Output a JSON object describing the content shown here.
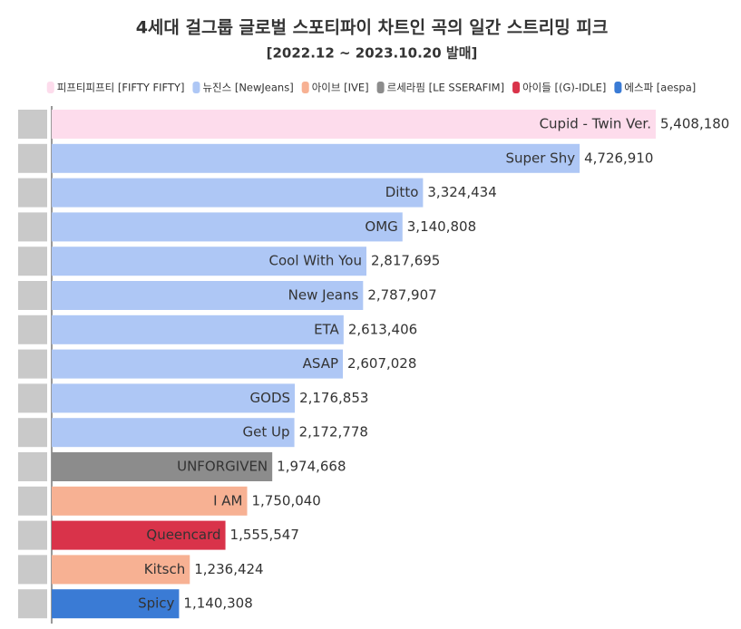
{
  "chart_data": {
    "type": "hbar",
    "title": "4세대 걸그룹 글로벌 스포티파이 차트인 곡의 일간 스트리밍 피크",
    "subtitle": "[2022.12 ~ 2023.10.20 발매]",
    "categories": [
      "Cupid - Twin Ver.",
      "Super Shy",
      "Ditto",
      "OMG",
      "Cool With You",
      "New Jeans",
      "ETA",
      "ASAP",
      "GODS",
      "Get Up",
      "UNFORGIVEN",
      "I AM",
      "Queencard",
      "Kitsch",
      "Spicy"
    ],
    "series": [
      {
        "name": "피프티피프티 [FIFTY FIFTY]",
        "color": "#fddcec",
        "values": [
          5408180,
          null,
          null,
          null,
          null,
          null,
          null,
          null,
          null,
          null,
          null,
          null,
          null,
          null,
          null
        ],
        "value_labels": [
          "5,408,180",
          null,
          null,
          null,
          null,
          null,
          null,
          null,
          null,
          null,
          null,
          null,
          null,
          null,
          null
        ]
      },
      {
        "name": "뉴진스 [NewJeans]",
        "color": "#aec7f5",
        "values": [
          null,
          4726910,
          3324434,
          3140808,
          2817695,
          2787907,
          2613406,
          2607028,
          2176853,
          2172778,
          null,
          null,
          null,
          null,
          null
        ],
        "value_labels": [
          null,
          "4,726,910",
          "3,324,434",
          "3,140,808",
          "2,817,695",
          "2,787,907",
          "2,613,406",
          "2,607,028",
          "2,176,853",
          "2,172,778",
          null,
          null,
          null,
          null,
          null
        ]
      },
      {
        "name": "아이브 [IVE]",
        "color": "#f7b193",
        "values": [
          null,
          null,
          null,
          null,
          null,
          null,
          null,
          null,
          null,
          null,
          null,
          1750040,
          null,
          1236424,
          null
        ],
        "value_labels": [
          null,
          null,
          null,
          null,
          null,
          null,
          null,
          null,
          null,
          null,
          null,
          "1,750,040",
          null,
          "1,236,424",
          null
        ]
      },
      {
        "name": "르세라핌 [LE SSERAFIM]",
        "color": "#8c8c8c",
        "values": [
          null,
          null,
          null,
          null,
          null,
          null,
          null,
          null,
          null,
          null,
          1974668,
          null,
          null,
          null,
          null
        ],
        "value_labels": [
          null,
          null,
          null,
          null,
          null,
          null,
          null,
          null,
          null,
          null,
          "1,974,668",
          null,
          null,
          null,
          null
        ]
      },
      {
        "name": "아이들 [(G)-IDLE]",
        "color": "#d9334a",
        "values": [
          null,
          null,
          null,
          null,
          null,
          null,
          null,
          null,
          null,
          null,
          null,
          null,
          1555547,
          null,
          null
        ],
        "value_labels": [
          null,
          null,
          null,
          null,
          null,
          null,
          null,
          null,
          null,
          null,
          null,
          null,
          "1,555,547",
          null,
          null
        ]
      },
      {
        "name": "에스파 [aespa]",
        "color": "#3a7bd5",
        "values": [
          null,
          null,
          null,
          null,
          null,
          null,
          null,
          null,
          null,
          null,
          null,
          null,
          null,
          null,
          1140308
        ],
        "value_labels": [
          null,
          null,
          null,
          null,
          null,
          null,
          null,
          null,
          null,
          null,
          null,
          null,
          null,
          null,
          "1,140,308"
        ]
      }
    ]
  }
}
